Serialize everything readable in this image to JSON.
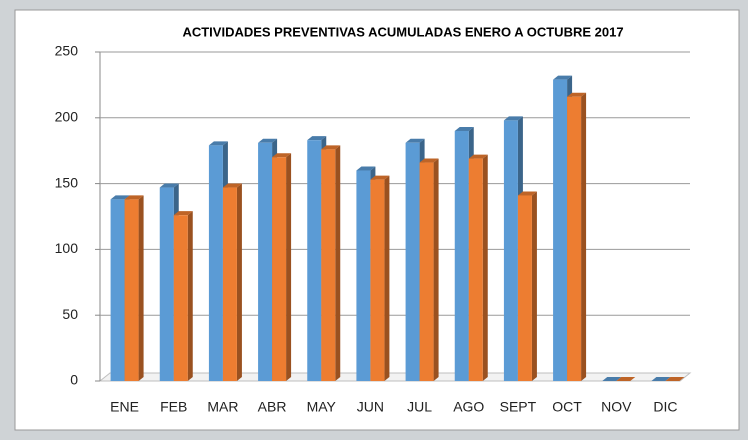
{
  "chart_data": {
    "type": "bar3d",
    "title": "ACTIVIDADES PREVENTIVAS ACUMULADAS ENERO A OCTUBRE 2017",
    "categories": [
      "ENE",
      "FEB",
      "MAR",
      "ABR",
      "MAY",
      "JUN",
      "JUL",
      "AGO",
      "SEPT",
      "OCT",
      "NOV",
      "DIC"
    ],
    "series": [
      {
        "color": "#5b9bd5",
        "values": [
          138,
          147,
          179,
          181,
          183,
          160,
          181,
          190,
          198,
          229,
          0,
          0
        ]
      },
      {
        "color": "#ed7d31",
        "values": [
          138,
          126,
          147,
          170,
          176,
          153,
          166,
          169,
          141,
          216,
          0,
          0
        ]
      }
    ],
    "ylim": [
      0,
      250
    ],
    "yticks": [
      0,
      50,
      100,
      150,
      200,
      250
    ],
    "grid": true
  }
}
